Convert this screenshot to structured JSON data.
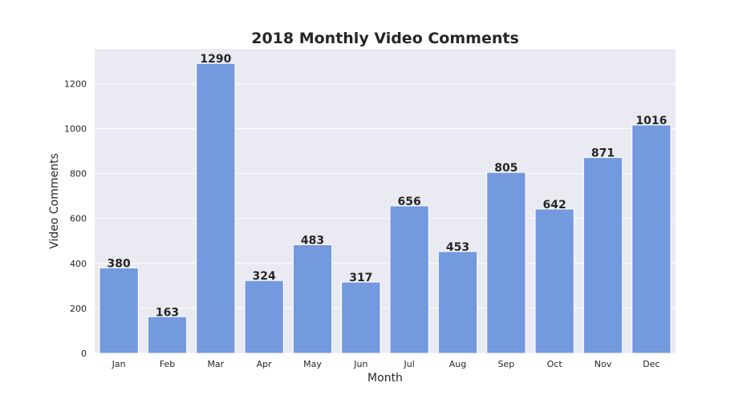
{
  "chart_data": {
    "type": "bar",
    "title": "2018 Monthly Video Comments",
    "xlabel": "Month",
    "ylabel": "Video Comments",
    "categories": [
      "Jan",
      "Feb",
      "Mar",
      "Apr",
      "May",
      "Jun",
      "Jul",
      "Aug",
      "Sep",
      "Oct",
      "Nov",
      "Dec"
    ],
    "values": [
      380,
      163,
      1290,
      324,
      483,
      317,
      656,
      453,
      805,
      642,
      871,
      1016
    ],
    "ylim": [
      0,
      1354.5
    ],
    "yticks": [
      0,
      200,
      400,
      600,
      800,
      1000,
      1200
    ],
    "grid": true,
    "legend": "none",
    "colors": {
      "bar": "#7399de",
      "plot_background": "#eaeaf2",
      "grid": "#ffffff",
      "text": "#262626"
    }
  }
}
